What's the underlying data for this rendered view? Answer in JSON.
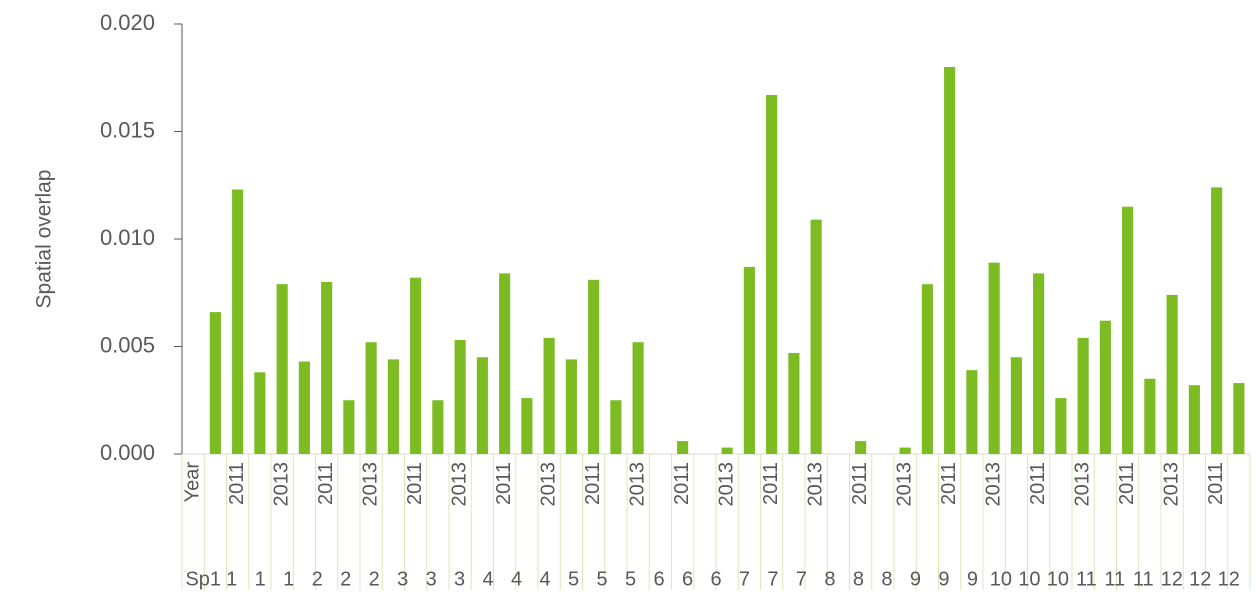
{
  "chart_data": {
    "type": "bar",
    "y_label": "Spatial overlap",
    "categories": [
      "Year",
      null,
      "2011",
      null,
      "2013",
      null,
      "2011",
      null,
      "2013",
      null,
      "2011",
      null,
      "2013",
      null,
      "2011",
      null,
      "2013",
      null,
      "2011",
      null,
      "2013",
      null,
      "2011",
      null,
      "2013",
      null,
      "2011",
      null,
      "2013",
      null,
      "2011",
      null,
      "2013",
      null,
      "2011",
      null,
      "2013",
      null,
      "2011",
      null,
      "2013",
      null,
      "2011",
      null,
      "2013",
      null,
      "2011",
      null
    ],
    "species_labels": [
      "Sp1",
      "1",
      "1",
      "1",
      "2",
      "2",
      "2",
      "3",
      "3",
      "3",
      "4",
      "4",
      "4",
      "5",
      "5",
      "5",
      "6",
      "6",
      "6",
      "7",
      "7",
      "7",
      "8",
      "8",
      "8",
      "9",
      "9",
      "9",
      "10",
      "10",
      "10",
      "11",
      "11",
      "11",
      "12",
      "12",
      "12"
    ],
    "values": [
      null,
      0.0066,
      0.0123,
      0.0038,
      0.0079,
      0.0043,
      0.008,
      0.0025,
      0.0052,
      0.0044,
      0.0082,
      0.0025,
      0.0053,
      0.0045,
      0.0084,
      0.0026,
      0.0054,
      0.0044,
      0.0081,
      0.0025,
      0.0052,
      0,
      0.0006,
      0,
      0.0003,
      0.0087,
      0.0167,
      0.0047,
      0.0109,
      0,
      0.0006,
      0,
      0.0003,
      0.0079,
      0.018,
      0.0039,
      0.0089,
      0.0045,
      0.0084,
      0.0026,
      0.0054,
      0.0062,
      0.0115,
      0.0035,
      0.0074,
      0.0032,
      0.0124,
      0.0033
    ],
    "color": "#7cbb22",
    "ylim": [
      0,
      0.02
    ],
    "yticks": [
      {
        "value": 0,
        "label": "0.000"
      },
      {
        "value": 0.005,
        "label": "0.005"
      },
      {
        "value": 0.01,
        "label": "0.010"
      },
      {
        "value": 0.015,
        "label": "0.015"
      },
      {
        "value": 0.02,
        "label": "0.020"
      }
    ],
    "grid": false
  }
}
